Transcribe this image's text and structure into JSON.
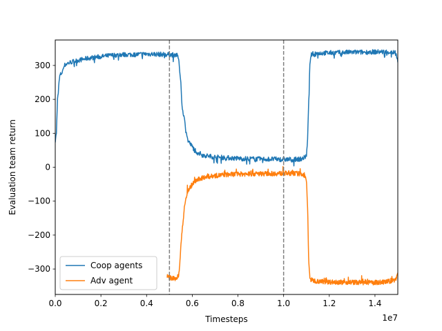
{
  "chart_data": {
    "type": "line",
    "xlabel": "Timesteps",
    "ylabel": "Evaluation team return",
    "x_offset_text": "1e7",
    "xlim": [
      0,
      1.5
    ],
    "ylim": [
      -375,
      375
    ],
    "x_ticks": [
      0.0,
      0.2,
      0.4,
      0.6,
      0.8,
      1.0,
      1.2,
      1.4
    ],
    "x_tick_labels": [
      "0.0",
      "0.2",
      "0.4",
      "0.6",
      "0.8",
      "1.0",
      "1.2",
      "1.4"
    ],
    "y_ticks": [
      300,
      200,
      100,
      0,
      -100,
      -200,
      -300
    ],
    "y_tick_labels": [
      "300",
      "200",
      "100",
      "0",
      "−100",
      "−200",
      "−300"
    ],
    "vlines": [
      0.5,
      1.0
    ],
    "vline_color": "#808080",
    "legend_position": "lower-left",
    "series": [
      {
        "name": "Coop agents",
        "color": "#1f77b4",
        "x": [
          0.0,
          0.005,
          0.01,
          0.015,
          0.02,
          0.03,
          0.04,
          0.05,
          0.07,
          0.1,
          0.15,
          0.2,
          0.25,
          0.3,
          0.35,
          0.4,
          0.45,
          0.5,
          0.52,
          0.53,
          0.54,
          0.55,
          0.555,
          0.56,
          0.565,
          0.57,
          0.575,
          0.58,
          0.59,
          0.6,
          0.62,
          0.65,
          0.7,
          0.75,
          0.8,
          0.85,
          0.9,
          0.95,
          1.0,
          1.05,
          1.08,
          1.09,
          1.1,
          1.105,
          1.11,
          1.115,
          1.12,
          1.13,
          1.15,
          1.2,
          1.25,
          1.3,
          1.35,
          1.4,
          1.45,
          1.49,
          1.5
        ],
        "y": [
          80,
          100,
          200,
          240,
          270,
          280,
          300,
          305,
          310,
          315,
          322,
          326,
          330,
          332,
          332,
          334,
          333,
          332,
          331,
          333,
          320,
          250,
          180,
          160,
          145,
          120,
          100,
          80,
          70,
          60,
          45,
          35,
          30,
          28,
          26,
          25,
          24,
          24,
          23,
          23,
          25,
          28,
          35,
          80,
          200,
          300,
          330,
          335,
          336,
          337,
          338,
          339,
          339,
          340,
          340,
          338,
          315
        ]
      },
      {
        "name": "Adv agent",
        "color": "#ff7f0e",
        "x": [
          0.49,
          0.5,
          0.52,
          0.53,
          0.54,
          0.545,
          0.55,
          0.555,
          0.56,
          0.565,
          0.57,
          0.575,
          0.58,
          0.59,
          0.6,
          0.62,
          0.65,
          0.7,
          0.75,
          0.8,
          0.85,
          0.9,
          0.95,
          1.0,
          1.05,
          1.08,
          1.09,
          1.1,
          1.105,
          1.11,
          1.115,
          1.12,
          1.13,
          1.15,
          1.2,
          1.25,
          1.3,
          1.35,
          1.4,
          1.45,
          1.49,
          1.5
        ],
        "y": [
          -322,
          -325,
          -328,
          -330,
          -320,
          -290,
          -230,
          -190,
          -160,
          -120,
          -100,
          -85,
          -70,
          -60,
          -50,
          -38,
          -30,
          -25,
          -22,
          -20,
          -20,
          -19,
          -19,
          -18,
          -18,
          -20,
          -24,
          -40,
          -120,
          -280,
          -325,
          -332,
          -334,
          -336,
          -338,
          -339,
          -339,
          -340,
          -340,
          -338,
          -332,
          -312
        ]
      }
    ]
  }
}
